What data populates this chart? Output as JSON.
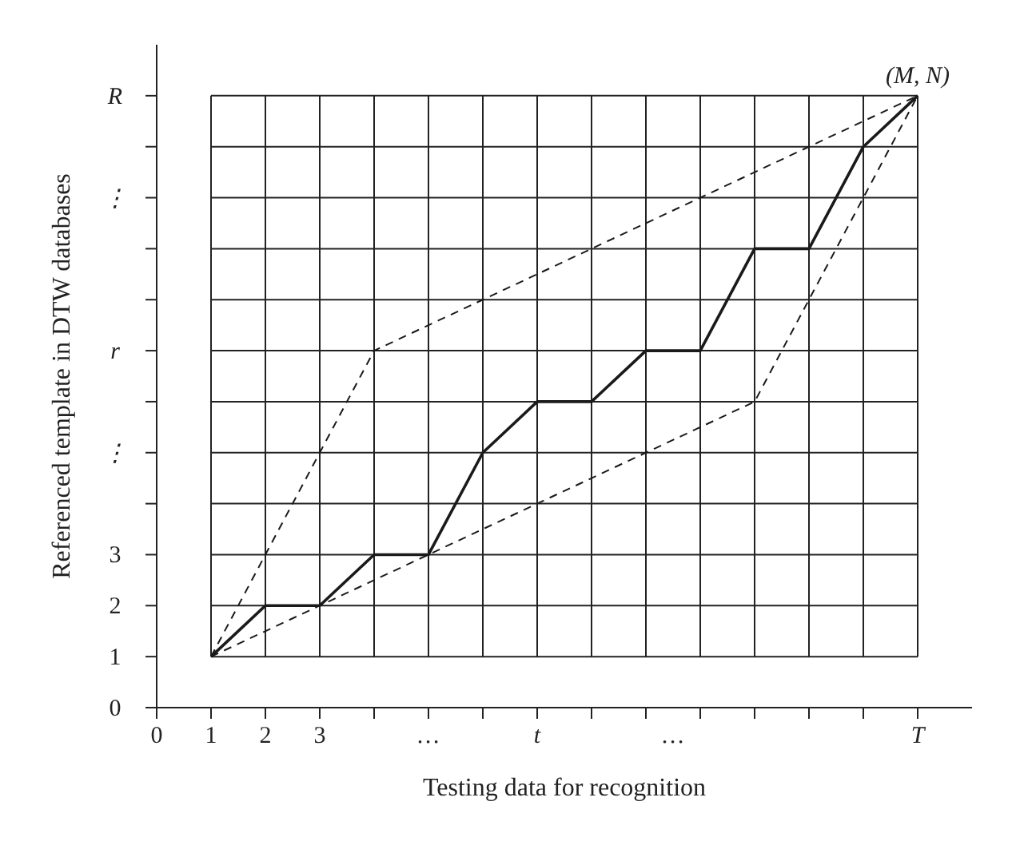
{
  "chart_data": {
    "type": "line",
    "xlabel": "Testing data for recognition",
    "ylabel": "Referenced template in DTW databases",
    "xlim": [
      0,
      15
    ],
    "ylim": [
      0,
      13
    ],
    "xticks": [
      0,
      1,
      2,
      3,
      {
        "value": 4,
        "label": null
      },
      {
        "value": 5,
        "label": "…"
      },
      {
        "value": 6,
        "label": null
      },
      {
        "value": 7,
        "label": "t"
      },
      {
        "value": 8,
        "label": null
      },
      {
        "value": 9,
        "label": null
      },
      {
        "value": 9.5,
        "label": "…"
      },
      {
        "value": 10,
        "label": null
      },
      {
        "value": 11,
        "label": null
      },
      {
        "value": 12,
        "label": null
      },
      {
        "value": 13,
        "label": null
      },
      {
        "value": 14,
        "label": "T"
      }
    ],
    "yticks": [
      0,
      1,
      2,
      3,
      {
        "value": 4,
        "label": null
      },
      {
        "value": 5,
        "label": "⋮"
      },
      {
        "value": 6,
        "label": null
      },
      {
        "value": 7,
        "label": "r"
      },
      {
        "value": 8,
        "label": null
      },
      {
        "value": 9,
        "label": null
      },
      {
        "value": 10,
        "label": "⋮"
      },
      {
        "value": 11,
        "label": null
      },
      {
        "value": 12,
        "label": "R"
      }
    ],
    "grid": true,
    "marker": "none",
    "series": [
      {
        "color": "#1a1a1a",
        "line_style": "solid",
        "x": [
          1,
          2,
          3,
          4,
          5,
          6,
          7,
          8,
          9,
          10,
          11,
          12,
          13,
          14
        ],
        "values": [
          1,
          2,
          2,
          3,
          3,
          5,
          6,
          6,
          7,
          7,
          9,
          9,
          11,
          12
        ]
      },
      {
        "color": "#1a1a1a",
        "line_style": "dashed",
        "x": [
          1,
          4,
          14
        ],
        "values": [
          1,
          7,
          12
        ]
      },
      {
        "color": "#1a1a1a",
        "line_style": "dashed",
        "x": [
          1,
          11,
          14
        ],
        "values": [
          1,
          6,
          12
        ]
      }
    ],
    "annotations": [
      {
        "text": "(M, N)",
        "x": 14,
        "y": 12
      }
    ]
  }
}
